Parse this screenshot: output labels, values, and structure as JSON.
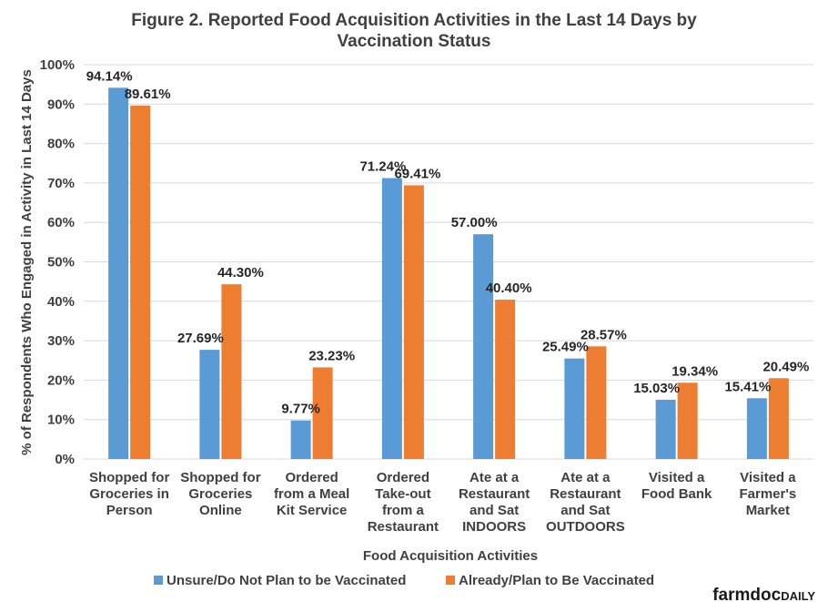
{
  "chart_data": {
    "type": "bar",
    "title_line1": "Figure 2. Reported Food Acquisition Activities in the Last 14 Days by",
    "title_line2": "Vaccination Status",
    "xlabel": "Food Acquisition Activities",
    "ylabel": "% of Respondents Who Engaged in Activity in Last 14 Days",
    "ylim": [
      0,
      100
    ],
    "yticks": [
      "0%",
      "10%",
      "20%",
      "30%",
      "40%",
      "50%",
      "60%",
      "70%",
      "80%",
      "90%",
      "100%"
    ],
    "grid": true,
    "legend_position": "bottom",
    "categories": [
      [
        "Shopped for",
        "Groceries in",
        "Person"
      ],
      [
        "Shopped for",
        "Groceries",
        "Online"
      ],
      [
        "Ordered",
        "from a Meal",
        "Kit Service"
      ],
      [
        "Ordered",
        "Take-out",
        "from a",
        "Restaurant"
      ],
      [
        "Ate at a",
        "Restaurant",
        "and Sat",
        "INDOORS"
      ],
      [
        "Ate at a",
        "Restaurant",
        "and Sat",
        "OUTDOORS"
      ],
      [
        "Visited a",
        "Food Bank"
      ],
      [
        "Visited a",
        "Farmer's",
        "Market"
      ]
    ],
    "series": [
      {
        "name": "Unsure/Do Not Plan to be Vaccinated",
        "color": "#5b9bd5",
        "values": [
          94.14,
          27.69,
          9.77,
          71.24,
          57.0,
          25.49,
          15.03,
          15.41
        ],
        "labels": [
          "94.14%",
          "27.69%",
          "9.77%",
          "71.24%",
          "57.00%",
          "25.49%",
          "15.03%",
          "15.41%"
        ]
      },
      {
        "name": "Already/Plan to Be Vaccinated",
        "color": "#ed7d31",
        "values": [
          89.61,
          44.3,
          23.23,
          69.41,
          40.4,
          28.57,
          19.34,
          20.49
        ],
        "labels": [
          "89.61%",
          "44.30%",
          "23.23%",
          "69.41%",
          "40.40%",
          "28.57%",
          "19.34%",
          "20.49%"
        ]
      }
    ]
  },
  "branding": {
    "part1": "farmdoc",
    "part2": "DAILY"
  }
}
